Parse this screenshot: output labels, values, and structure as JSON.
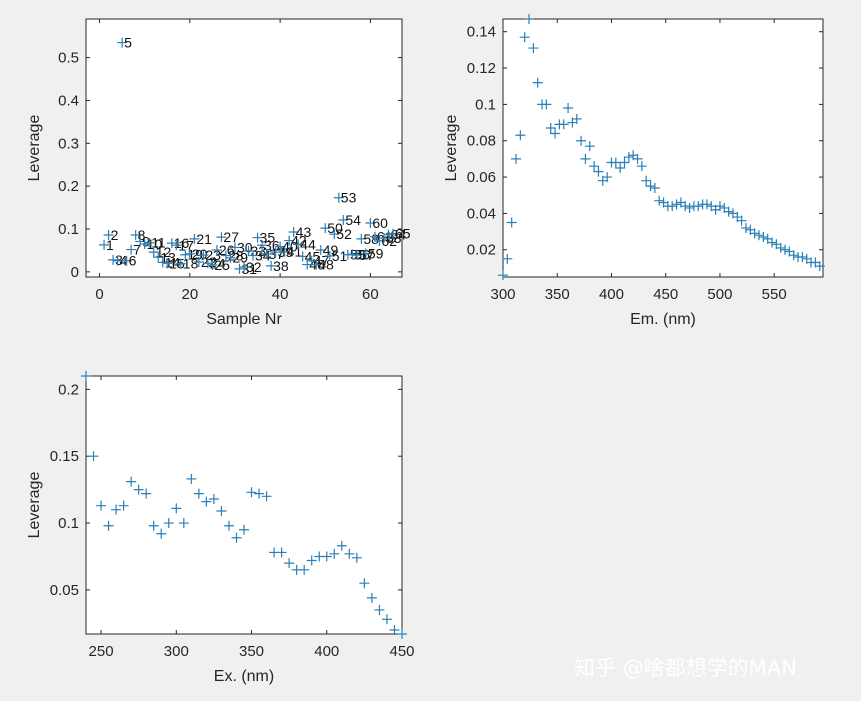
{
  "watermark": "知乎 @啥都想学的MAN",
  "colors": {
    "marker": "#2a7fb8",
    "axes": "#262626",
    "plot_bg": "#ffffff",
    "figure_bg": "#f0f0f0"
  },
  "chart_data": [
    {
      "type": "scatter",
      "xlabel": "Sample Nr",
      "ylabel": "Leverage",
      "xlim": [
        -3,
        67
      ],
      "ylim": [
        -0.012,
        0.59
      ],
      "xticks": [
        0,
        20,
        40,
        60
      ],
      "yticks": [
        0,
        0.1,
        0.2,
        0.3,
        0.4,
        0.5
      ],
      "ytick_labels": [
        "0",
        "0.1",
        "0.2",
        "0.3",
        "0.4",
        "0.5"
      ],
      "x": [
        1,
        2,
        3,
        4,
        5,
        6,
        7,
        8,
        9,
        10,
        11,
        12,
        13,
        14,
        15,
        16,
        17,
        18,
        19,
        20,
        21,
        22,
        23,
        24,
        25,
        26,
        27,
        28,
        29,
        30,
        31,
        32,
        33,
        34,
        35,
        36,
        37,
        38,
        39,
        40,
        41,
        42,
        43,
        44,
        45,
        46,
        47,
        48,
        49,
        50,
        51,
        52,
        53,
        54,
        55,
        56,
        57,
        58,
        59,
        60,
        61,
        62,
        63,
        64,
        65
      ],
      "y": [
        0.063,
        0.086,
        0.028,
        0.026,
        0.535,
        0.026,
        0.052,
        0.086,
        0.071,
        0.065,
        0.068,
        0.046,
        0.034,
        0.022,
        0.02,
        0.067,
        0.062,
        0.019,
        0.04,
        0.042,
        0.077,
        0.023,
        0.039,
        0.02,
        0.016,
        0.051,
        0.081,
        0.038,
        0.033,
        0.057,
        0.007,
        0.011,
        0.049,
        0.038,
        0.08,
        0.062,
        0.042,
        0.014,
        0.046,
        0.059,
        0.047,
        0.073,
        0.093,
        0.064,
        0.036,
        0.017,
        0.026,
        0.017,
        0.051,
        0.102,
        0.037,
        0.088,
        0.173,
        0.121,
        0.04,
        0.041,
        0.039,
        0.077,
        0.043,
        0.114,
        0.082,
        0.072,
        0.079,
        0.087,
        0.089
      ],
      "labels": [
        "1",
        "2",
        "3",
        "4",
        "5",
        "6",
        "7",
        "8",
        "9",
        "10",
        "11",
        "12",
        "13",
        "14",
        "15",
        "16",
        "17",
        "18",
        "19",
        "20",
        "21",
        "22",
        "23",
        "24",
        "25",
        "26",
        "27",
        "28",
        "29",
        "30",
        "31",
        "32",
        "33",
        "34",
        "35",
        "36",
        "37",
        "38",
        "39",
        "40",
        "41",
        "42",
        "43",
        "44",
        "45",
        "46",
        "47",
        "48",
        "49",
        "50",
        "51",
        "52",
        "53",
        "54",
        "55",
        "56",
        "57",
        "58",
        "59",
        "60",
        "61",
        "62",
        "63",
        "64",
        "65"
      ]
    },
    {
      "type": "scatter",
      "xlabel": "Em. (nm)",
      "ylabel": "Leverage",
      "xlim": [
        300,
        595
      ],
      "ylim": [
        0.005,
        0.147
      ],
      "xticks": [
        300,
        350,
        400,
        450,
        500,
        550
      ],
      "yticks": [
        0.02,
        0.04,
        0.06,
        0.08,
        0.1,
        0.12,
        0.14
      ],
      "ytick_labels": [
        "0.02",
        "0.04",
        "0.06",
        "0.08",
        "0.1",
        "0.12",
        "0.14"
      ],
      "x": [
        300,
        304,
        308,
        312,
        316,
        320,
        324,
        328,
        332,
        336,
        340,
        344,
        348,
        352,
        356,
        360,
        364,
        368,
        372,
        376,
        380,
        384,
        388,
        392,
        396,
        400,
        404,
        408,
        412,
        416,
        420,
        424,
        428,
        432,
        436,
        440,
        444,
        448,
        452,
        456,
        460,
        464,
        468,
        472,
        476,
        480,
        484,
        488,
        492,
        496,
        500,
        504,
        508,
        512,
        516,
        520,
        524,
        528,
        532,
        536,
        540,
        544,
        548,
        552,
        556,
        560,
        564,
        568,
        572,
        576,
        580,
        584,
        588,
        592
      ],
      "y": [
        0.006,
        0.015,
        0.035,
        0.07,
        0.083,
        0.137,
        0.147,
        0.131,
        0.112,
        0.1,
        0.1,
        0.087,
        0.084,
        0.089,
        0.089,
        0.098,
        0.09,
        0.092,
        0.08,
        0.07,
        0.077,
        0.066,
        0.063,
        0.058,
        0.06,
        0.068,
        0.068,
        0.065,
        0.068,
        0.071,
        0.072,
        0.07,
        0.066,
        0.058,
        0.055,
        0.054,
        0.047,
        0.046,
        0.044,
        0.044,
        0.045,
        0.046,
        0.044,
        0.043,
        0.044,
        0.044,
        0.045,
        0.045,
        0.044,
        0.042,
        0.044,
        0.043,
        0.041,
        0.04,
        0.038,
        0.036,
        0.032,
        0.031,
        0.029,
        0.028,
        0.027,
        0.026,
        0.024,
        0.023,
        0.021,
        0.02,
        0.019,
        0.017,
        0.016,
        0.016,
        0.015,
        0.013,
        0.013,
        0.011
      ]
    },
    {
      "type": "scatter",
      "xlabel": "Ex. (nm)",
      "ylabel": "Leverage",
      "xlim": [
        240,
        450
      ],
      "ylim": [
        0.017,
        0.21
      ],
      "xticks": [
        250,
        300,
        350,
        400,
        450
      ],
      "yticks": [
        0.05,
        0.1,
        0.15,
        0.2
      ],
      "ytick_labels": [
        "0.05",
        "0.1",
        "0.15",
        "0.2"
      ],
      "x": [
        240,
        245,
        250,
        255,
        260,
        265,
        270,
        275,
        280,
        285,
        290,
        295,
        300,
        305,
        310,
        315,
        320,
        325,
        330,
        335,
        340,
        345,
        350,
        355,
        360,
        365,
        370,
        375,
        380,
        385,
        390,
        395,
        400,
        405,
        410,
        415,
        420,
        425,
        430,
        435,
        440,
        445,
        450
      ],
      "y": [
        0.21,
        0.15,
        0.113,
        0.098,
        0.11,
        0.113,
        0.131,
        0.125,
        0.122,
        0.098,
        0.092,
        0.1,
        0.111,
        0.1,
        0.133,
        0.122,
        0.116,
        0.118,
        0.109,
        0.098,
        0.089,
        0.095,
        0.123,
        0.122,
        0.12,
        0.078,
        0.078,
        0.07,
        0.065,
        0.065,
        0.072,
        0.075,
        0.075,
        0.077,
        0.083,
        0.077,
        0.074,
        0.055,
        0.044,
        0.035,
        0.028,
        0.02,
        0.017
      ]
    }
  ]
}
